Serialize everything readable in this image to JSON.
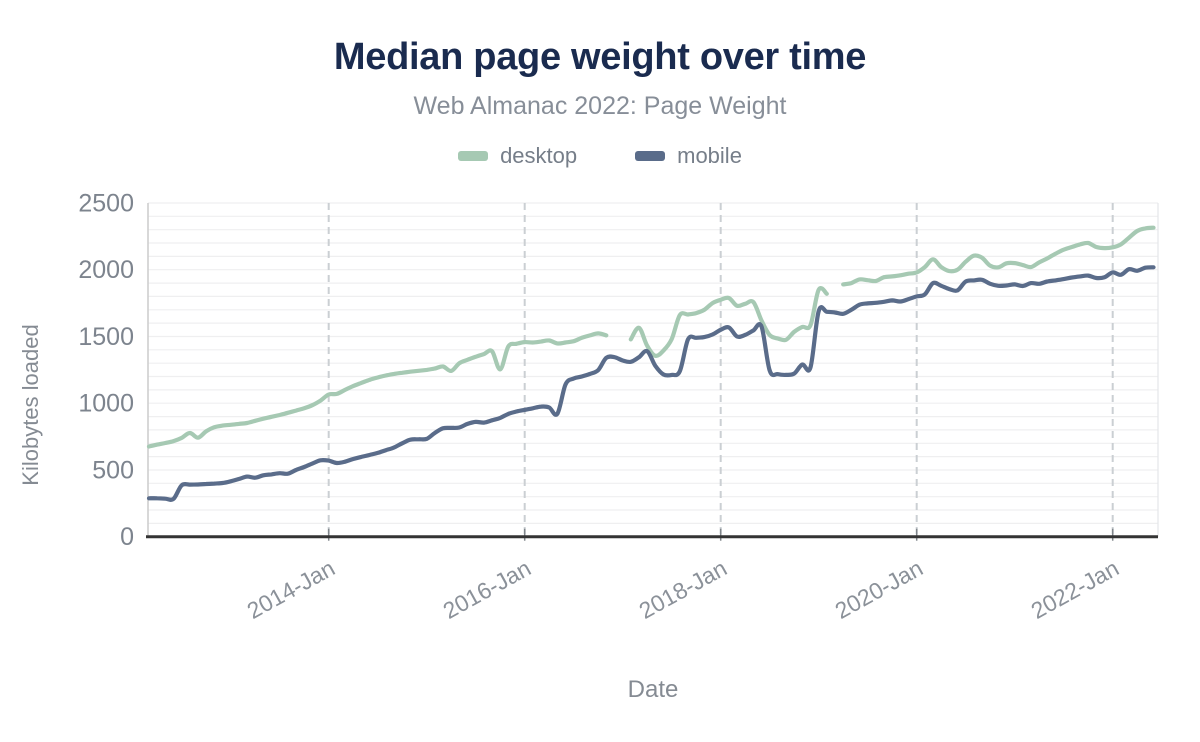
{
  "header": {
    "title": "Median page weight over time",
    "subtitle": "Web Almanac 2022: Page Weight"
  },
  "legend": {
    "items": [
      {
        "label": "desktop",
        "color": "#a6c9b3"
      },
      {
        "label": "mobile",
        "color": "#5a6c8a"
      }
    ]
  },
  "chart_data": {
    "type": "line",
    "title": "Median page weight over time",
    "subtitle": "Web Almanac 2022: Page Weight",
    "xlabel": "Date",
    "ylabel": "Kilobytes loaded",
    "x_start_month": "2012-03",
    "x_end_month": "2022-06",
    "x_interval": "monthly",
    "x_tick_labels": [
      "2014-Jan",
      "2016-Jan",
      "2018-Jan",
      "2020-Jan",
      "2022-Jan"
    ],
    "x_tick_indices": [
      22,
      46,
      70,
      94,
      118
    ],
    "ylim": [
      0,
      2500
    ],
    "y_ticks": [
      0,
      500,
      1000,
      1500,
      2000,
      2500
    ],
    "y_minor_grid_step": 100,
    "grid": {
      "horizontal": "minor light lines every 100",
      "vertical": "dashed lines at year ticks"
    },
    "legend_position": "top",
    "notes": "desktop series has data gaps at 2016-12..2017-01 and 2019-03 (nulls)",
    "series": [
      {
        "name": "desktop",
        "color": "#a6c9b3",
        "values": [
          676,
          690,
          702,
          716,
          740,
          777,
          742,
          790,
          820,
          832,
          838,
          845,
          852,
          868,
          884,
          898,
          912,
          928,
          945,
          962,
          985,
          1020,
          1065,
          1070,
          1100,
          1128,
          1152,
          1175,
          1193,
          1208,
          1220,
          1228,
          1236,
          1243,
          1250,
          1260,
          1275,
          1242,
          1300,
          1325,
          1348,
          1368,
          1390,
          1253,
          1425,
          1445,
          1458,
          1455,
          1462,
          1470,
          1448,
          1455,
          1465,
          1490,
          1508,
          1523,
          1508,
          null,
          null,
          1478,
          1565,
          1430,
          1355,
          1395,
          1480,
          1660,
          1665,
          1675,
          1700,
          1750,
          1775,
          1788,
          1730,
          1745,
          1758,
          1620,
          1510,
          1485,
          1475,
          1535,
          1572,
          1585,
          1850,
          1820,
          null,
          1890,
          1900,
          1928,
          1922,
          1916,
          1944,
          1950,
          1958,
          1970,
          1980,
          2020,
          2078,
          2020,
          1990,
          2000,
          2060,
          2105,
          2090,
          2030,
          2018,
          2048,
          2050,
          2035,
          2020,
          2055,
          2085,
          2120,
          2150,
          2170,
          2190,
          2200,
          2170,
          2162,
          2168,
          2190,
          2240,
          2290,
          2310,
          2315
        ]
      },
      {
        "name": "mobile",
        "color": "#5a6c8a",
        "values": [
          288,
          288,
          285,
          283,
          385,
          390,
          391,
          395,
          398,
          402,
          415,
          432,
          450,
          442,
          460,
          467,
          476,
          472,
          500,
          522,
          548,
          572,
          570,
          552,
          562,
          582,
          598,
          612,
          628,
          648,
          668,
          700,
          727,
          730,
          733,
          777,
          812,
          815,
          818,
          845,
          860,
          855,
          872,
          890,
          920,
          938,
          950,
          962,
          975,
          968,
          920,
          1140,
          1185,
          1200,
          1220,
          1248,
          1340,
          1345,
          1320,
          1310,
          1345,
          1390,
          1280,
          1215,
          1212,
          1240,
          1478,
          1490,
          1495,
          1515,
          1550,
          1568,
          1500,
          1512,
          1545,
          1575,
          1245,
          1218,
          1212,
          1222,
          1290,
          1268,
          1690,
          1685,
          1680,
          1670,
          1700,
          1738,
          1748,
          1752,
          1760,
          1770,
          1762,
          1780,
          1800,
          1815,
          1900,
          1880,
          1855,
          1845,
          1912,
          1920,
          1925,
          1895,
          1880,
          1882,
          1890,
          1878,
          1900,
          1895,
          1912,
          1920,
          1930,
          1942,
          1950,
          1956,
          1938,
          1944,
          1980,
          1962,
          2004,
          1992,
          2015,
          2018
        ]
      }
    ]
  },
  "colors": {
    "background": "#ffffff",
    "title_text": "#1a2b4f",
    "subtitle_text": "#878e98",
    "legend_text": "#767e89",
    "axis_title_text": "#858b93",
    "y_tick_text": "#7d848e",
    "x_tick_text": "#8b9199",
    "axis_line": "#343434",
    "tick_mark": "#80868b",
    "gridline_minor": "#efeff0",
    "gridline_vertical": "#cbcfd3",
    "plot_left_border": "#cccccc",
    "plot_right_border": "#e4e6e8",
    "desktop": "#a6c9b3",
    "mobile": "#5a6c8a"
  }
}
